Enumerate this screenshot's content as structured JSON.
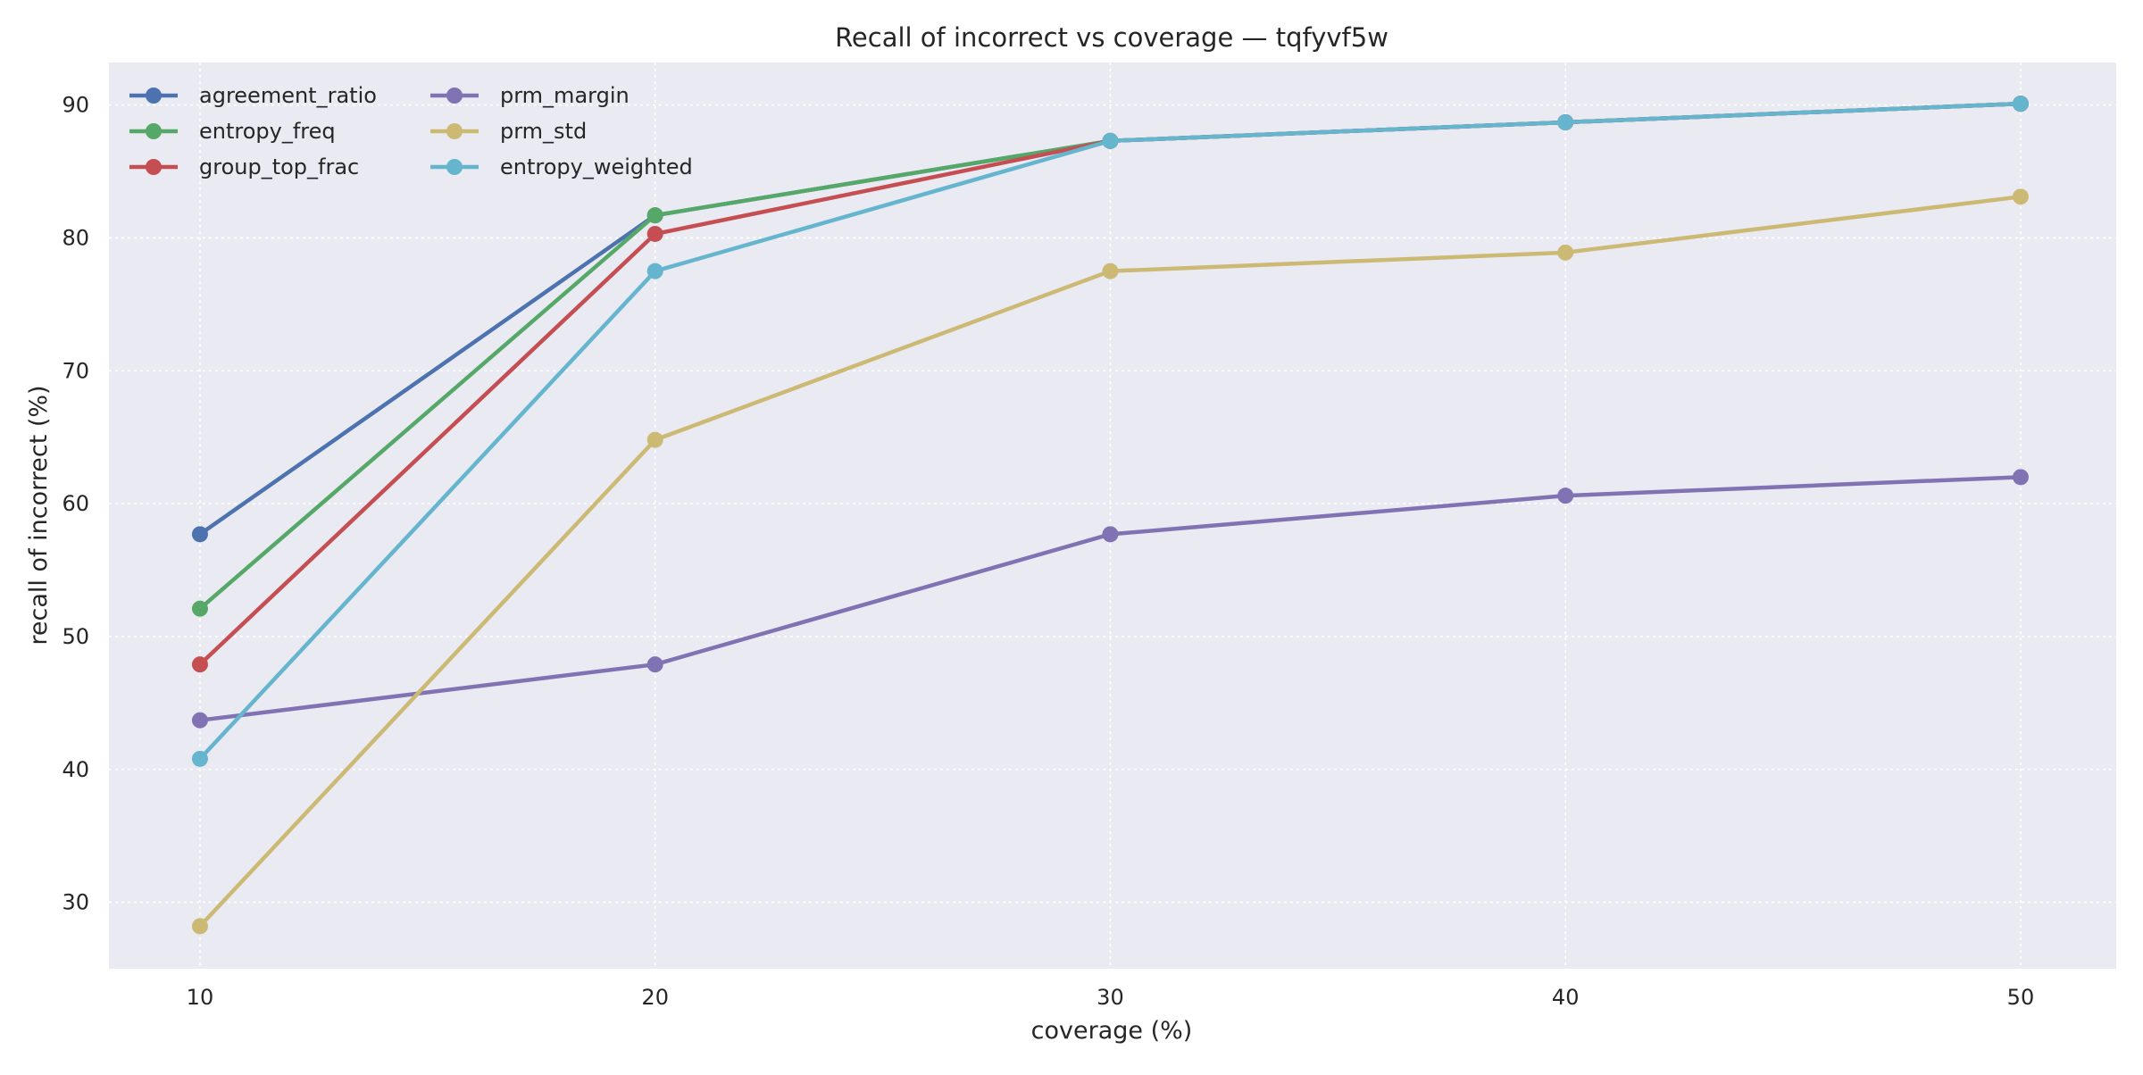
{
  "chart_data": {
    "type": "line",
    "title": "Recall of incorrect vs coverage — tqfyvf5w",
    "xlabel": "coverage (%)",
    "ylabel": "recall of incorrect (%)",
    "x": [
      10,
      20,
      30,
      40,
      50
    ],
    "xlim": [
      8,
      52.1
    ],
    "ylim": [
      25,
      93.2
    ],
    "xticks": [
      10,
      20,
      30,
      40,
      50
    ],
    "yticks": [
      30,
      40,
      50,
      60,
      70,
      80,
      90
    ],
    "grid": true,
    "legend_position": "upper-left",
    "series": [
      {
        "name": "agreement_ratio",
        "color": "#4c72b0",
        "values": [
          57.7,
          81.7,
          87.3,
          88.7,
          90.1
        ]
      },
      {
        "name": "entropy_freq",
        "color": "#55a868",
        "values": [
          52.1,
          81.7,
          87.3,
          88.7,
          90.1
        ]
      },
      {
        "name": "group_top_frac",
        "color": "#c44e52",
        "values": [
          47.9,
          80.3,
          87.3,
          88.7,
          90.1
        ]
      },
      {
        "name": "prm_margin",
        "color": "#8172b3",
        "values": [
          43.7,
          47.9,
          57.7,
          60.6,
          62.0
        ]
      },
      {
        "name": "prm_std",
        "color": "#ccb974",
        "values": [
          28.2,
          64.8,
          77.5,
          78.9,
          83.1
        ]
      },
      {
        "name": "entropy_weighted",
        "color": "#64b5cd",
        "values": [
          40.8,
          77.5,
          87.3,
          88.7,
          90.1
        ]
      }
    ]
  }
}
